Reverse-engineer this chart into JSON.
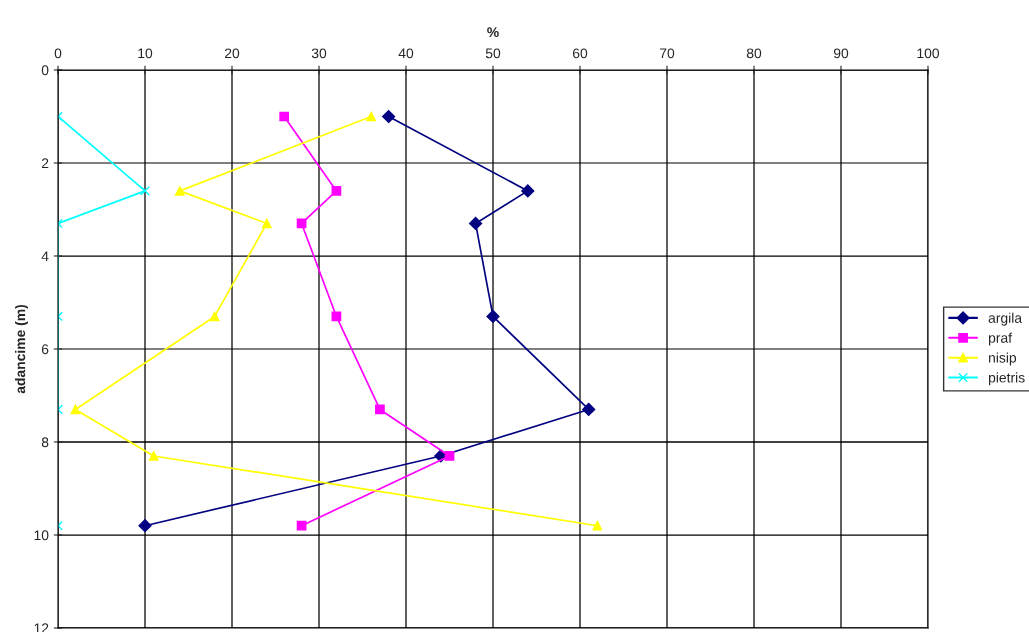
{
  "chart_data": {
    "type": "line",
    "orientation": "horizontal",
    "xlabel": "%",
    "ylabel": "adancime (m)",
    "x": [
      1,
      2.6,
      3.3,
      5.3,
      7.3,
      8.3,
      9.8
    ],
    "series": [
      {
        "name": "argila",
        "color": "#000080",
        "marker": "diamond",
        "values": [
          38,
          54,
          48,
          50,
          61,
          44,
          10
        ]
      },
      {
        "name": "praf",
        "color": "#ff00ff",
        "marker": "square",
        "values": [
          26,
          32,
          28,
          32,
          37,
          45,
          28
        ]
      },
      {
        "name": "nisip",
        "color": "#ffff00",
        "marker": "triangle",
        "values": [
          36,
          14,
          24,
          18,
          2,
          11,
          62
        ]
      },
      {
        "name": "pietris",
        "color": "#00ffff",
        "marker": "cross",
        "values": [
          0,
          10,
          0,
          0,
          0,
          null,
          0
        ]
      }
    ],
    "xlim": [
      0,
      100
    ],
    "xticks": [
      0,
      10,
      20,
      30,
      40,
      50,
      60,
      70,
      80,
      90,
      100
    ],
    "ylim": [
      12,
      0
    ],
    "yticks": [
      0,
      2,
      4,
      6,
      8,
      10,
      12
    ],
    "grid": true,
    "legend": "right"
  }
}
